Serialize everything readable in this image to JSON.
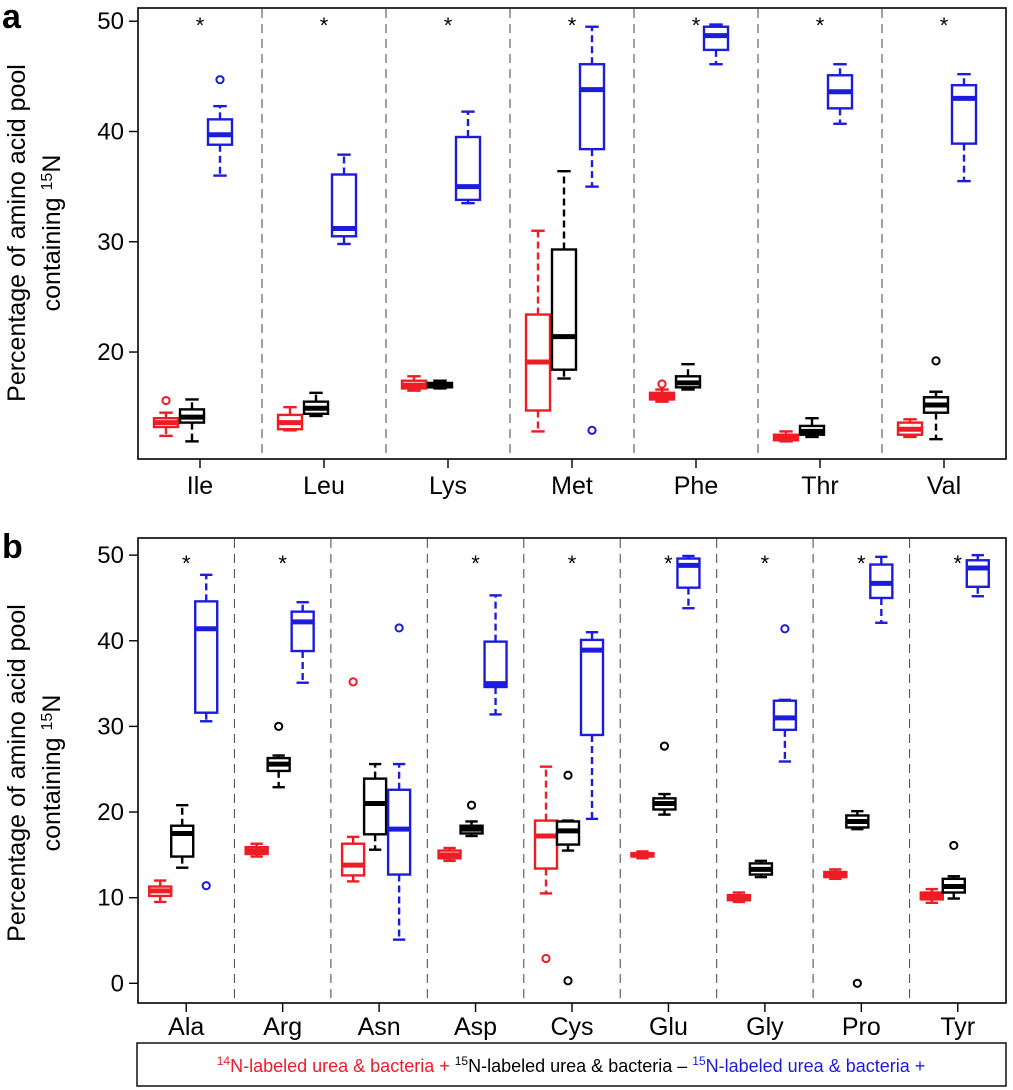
{
  "figure": {
    "colors": {
      "red": "#ee1c24",
      "black": "#000000",
      "blue": "#1c1cdd"
    },
    "legend": {
      "red": {
        "sup": "14",
        "text": "N-labeled urea & bacteria +"
      },
      "black": {
        "sup": "15",
        "text": "N-labeled urea & bacteria –"
      },
      "blue": {
        "sup": "15",
        "text": "N-labeled urea & bacteria +"
      }
    }
  },
  "chart_data": [
    {
      "panel": "a",
      "type": "boxplot",
      "ylabel_line1": "Percentage of amino acid pool",
      "ylabel_line2_prefix": "containing ",
      "ylabel_line2_sup": "15",
      "ylabel_line2_suffix": "N",
      "ylim": [
        10.3,
        51.2
      ],
      "yticks": [
        20,
        30,
        40,
        50
      ],
      "series_names": [
        "14N-labeled urea & bacteria +",
        "15N-labeled urea & bacteria –",
        "15N-labeled urea & bacteria +"
      ],
      "groups": [
        {
          "label": "Ile",
          "star": "*",
          "boxes": [
            {
              "series": "red",
              "min": 12.4,
              "q1": 13.2,
              "median": 13.6,
              "q3": 14.0,
              "max": 14.5,
              "outliers": [
                15.6
              ]
            },
            {
              "series": "black",
              "min": 11.9,
              "q1": 13.6,
              "median": 14.1,
              "q3": 14.8,
              "max": 15.7,
              "outliers": []
            },
            {
              "series": "blue",
              "min": 36.0,
              "q1": 38.8,
              "median": 39.7,
              "q3": 41.1,
              "max": 42.3,
              "outliers": [
                44.7
              ]
            }
          ]
        },
        {
          "label": "Leu",
          "star": "*",
          "boxes": [
            {
              "series": "red",
              "min": 12.9,
              "q1": 13.0,
              "median": 13.6,
              "q3": 14.3,
              "max": 15.0,
              "outliers": []
            },
            {
              "series": "black",
              "min": 14.2,
              "q1": 14.4,
              "median": 14.9,
              "q3": 15.5,
              "max": 16.3,
              "outliers": []
            },
            {
              "series": "blue",
              "min": 29.8,
              "q1": 30.5,
              "median": 31.2,
              "q3": 36.1,
              "max": 37.9,
              "outliers": []
            }
          ]
        },
        {
          "label": "Lys",
          "star": "*",
          "boxes": [
            {
              "series": "red",
              "min": 16.5,
              "q1": 16.7,
              "median": 17.0,
              "q3": 17.4,
              "max": 17.8,
              "outliers": []
            },
            {
              "series": "black",
              "min": 16.7,
              "q1": 16.8,
              "median": 17.0,
              "q3": 17.2,
              "max": 17.4,
              "outliers": []
            },
            {
              "series": "blue",
              "min": 33.5,
              "q1": 33.8,
              "median": 35.0,
              "q3": 39.5,
              "max": 41.8,
              "outliers": []
            }
          ]
        },
        {
          "label": "Met",
          "star": "*",
          "boxes": [
            {
              "series": "red",
              "min": 12.8,
              "q1": 14.7,
              "median": 19.1,
              "q3": 23.4,
              "max": 31.0,
              "outliers": []
            },
            {
              "series": "black",
              "min": 17.6,
              "q1": 18.4,
              "median": 21.4,
              "q3": 29.3,
              "max": 36.4,
              "outliers": []
            },
            {
              "series": "blue",
              "min": 35.0,
              "q1": 38.4,
              "median": 43.8,
              "q3": 46.1,
              "max": 49.5,
              "outliers": [
                12.9
              ]
            }
          ]
        },
        {
          "label": "Phe",
          "star": "*",
          "boxes": [
            {
              "series": "red",
              "min": 15.5,
              "q1": 15.7,
              "median": 16.0,
              "q3": 16.3,
              "max": 16.6,
              "outliers": [
                17.1
              ]
            },
            {
              "series": "black",
              "min": 16.6,
              "q1": 16.8,
              "median": 17.2,
              "q3": 17.8,
              "max": 18.9,
              "outliers": []
            },
            {
              "series": "blue",
              "min": 46.1,
              "q1": 47.4,
              "median": 48.7,
              "q3": 49.5,
              "max": 49.7,
              "outliers": []
            }
          ]
        },
        {
          "label": "Thr",
          "star": "*",
          "boxes": [
            {
              "series": "red",
              "min": 11.9,
              "q1": 12.0,
              "median": 12.3,
              "q3": 12.5,
              "max": 12.8,
              "outliers": []
            },
            {
              "series": "black",
              "min": 12.3,
              "q1": 12.5,
              "median": 12.8,
              "q3": 13.3,
              "max": 14.0,
              "outliers": []
            },
            {
              "series": "blue",
              "min": 40.7,
              "q1": 42.1,
              "median": 43.6,
              "q3": 45.1,
              "max": 46.1,
              "outliers": []
            }
          ]
        },
        {
          "label": "Val",
          "star": "*",
          "boxes": [
            {
              "series": "red",
              "min": 12.3,
              "q1": 12.5,
              "median": 13.0,
              "q3": 13.6,
              "max": 13.9,
              "outliers": []
            },
            {
              "series": "black",
              "min": 12.1,
              "q1": 14.5,
              "median": 15.2,
              "q3": 15.9,
              "max": 16.4,
              "outliers": [
                19.2
              ]
            },
            {
              "series": "blue",
              "min": 35.5,
              "q1": 38.9,
              "median": 43.0,
              "q3": 44.2,
              "max": 45.2,
              "outliers": []
            }
          ]
        }
      ]
    },
    {
      "panel": "b",
      "type": "boxplot",
      "ylabel_line1": "Percentage of amino acid pool",
      "ylabel_line2_prefix": "containing ",
      "ylabel_line2_sup": "15",
      "ylabel_line2_suffix": "N",
      "ylim": [
        -2.3,
        52.0
      ],
      "yticks": [
        0,
        10,
        20,
        30,
        40,
        50
      ],
      "series_names": [
        "14N-labeled urea & bacteria +",
        "15N-labeled urea & bacteria –",
        "15N-labeled urea & bacteria +"
      ],
      "groups": [
        {
          "label": "Ala",
          "star": "*",
          "boxes": [
            {
              "series": "red",
              "min": 9.5,
              "q1": 10.2,
              "median": 10.8,
              "q3": 11.3,
              "max": 12.0,
              "outliers": []
            },
            {
              "series": "black",
              "min": 13.5,
              "q1": 14.8,
              "median": 17.5,
              "q3": 18.4,
              "max": 20.8,
              "outliers": []
            },
            {
              "series": "blue",
              "min": 30.6,
              "q1": 31.6,
              "median": 41.4,
              "q3": 44.6,
              "max": 47.7,
              "outliers": [
                11.4
              ]
            }
          ]
        },
        {
          "label": "Arg",
          "star": "*",
          "boxes": [
            {
              "series": "red",
              "min": 14.8,
              "q1": 15.1,
              "median": 15.5,
              "q3": 15.9,
              "max": 16.3,
              "outliers": []
            },
            {
              "series": "black",
              "min": 22.9,
              "q1": 24.8,
              "median": 25.6,
              "q3": 26.3,
              "max": 26.6,
              "outliers": [
                30.0
              ]
            },
            {
              "series": "blue",
              "min": 35.1,
              "q1": 38.8,
              "median": 42.2,
              "q3": 43.4,
              "max": 44.5,
              "outliers": []
            }
          ]
        },
        {
          "label": "Asn",
          "star": "",
          "boxes": [
            {
              "series": "red",
              "min": 11.9,
              "q1": 12.6,
              "median": 13.8,
              "q3": 16.3,
              "max": 17.1,
              "outliers": [
                35.2
              ]
            },
            {
              "series": "black",
              "min": 15.6,
              "q1": 17.4,
              "median": 21.0,
              "q3": 23.9,
              "max": 25.6,
              "outliers": []
            },
            {
              "series": "blue",
              "min": 5.1,
              "q1": 12.7,
              "median": 18.0,
              "q3": 22.6,
              "max": 25.6,
              "outliers": [
                41.5
              ]
            }
          ]
        },
        {
          "label": "Asp",
          "star": "*",
          "boxes": [
            {
              "series": "red",
              "min": 14.3,
              "q1": 14.6,
              "median": 15.0,
              "q3": 15.5,
              "max": 15.8,
              "outliers": []
            },
            {
              "series": "black",
              "min": 17.2,
              "q1": 17.5,
              "median": 18.0,
              "q3": 18.4,
              "max": 18.9,
              "outliers": [
                20.8
              ]
            },
            {
              "series": "blue",
              "min": 31.4,
              "q1": 34.6,
              "median": 35.0,
              "q3": 39.9,
              "max": 45.3,
              "outliers": []
            }
          ]
        },
        {
          "label": "Cys",
          "star": "*",
          "boxes": [
            {
              "series": "red",
              "min": 10.5,
              "q1": 13.4,
              "median": 17.2,
              "q3": 19.0,
              "max": 25.3,
              "outliers": [
                2.9
              ]
            },
            {
              "series": "black",
              "min": 15.5,
              "q1": 16.2,
              "median": 17.8,
              "q3": 18.9,
              "max": 19.0,
              "outliers": [
                24.3,
                0.3
              ]
            },
            {
              "series": "blue",
              "min": 19.2,
              "q1": 29.0,
              "median": 38.9,
              "q3": 40.1,
              "max": 41.0,
              "outliers": []
            }
          ]
        },
        {
          "label": "Glu",
          "star": "*",
          "boxes": [
            {
              "series": "red",
              "min": 14.6,
              "q1": 14.8,
              "median": 15.0,
              "q3": 15.2,
              "max": 15.4,
              "outliers": []
            },
            {
              "series": "black",
              "min": 19.7,
              "q1": 20.3,
              "median": 21.0,
              "q3": 21.6,
              "max": 22.1,
              "outliers": [
                27.7
              ]
            },
            {
              "series": "blue",
              "min": 43.8,
              "q1": 46.2,
              "median": 48.8,
              "q3": 49.6,
              "max": 49.9,
              "outliers": []
            }
          ]
        },
        {
          "label": "Gly",
          "star": "*",
          "boxes": [
            {
              "series": "red",
              "min": 9.5,
              "q1": 9.7,
              "median": 10.0,
              "q3": 10.3,
              "max": 10.6,
              "outliers": []
            },
            {
              "series": "black",
              "min": 12.4,
              "q1": 12.7,
              "median": 13.3,
              "q3": 14.0,
              "max": 14.3,
              "outliers": []
            },
            {
              "series": "blue",
              "min": 25.9,
              "q1": 29.6,
              "median": 31.0,
              "q3": 33.0,
              "max": 33.1,
              "outliers": [
                41.4
              ]
            }
          ]
        },
        {
          "label": "Pro",
          "star": "*",
          "boxes": [
            {
              "series": "red",
              "min": 12.2,
              "q1": 12.4,
              "median": 12.7,
              "q3": 13.0,
              "max": 13.3,
              "outliers": []
            },
            {
              "series": "black",
              "min": 18.0,
              "q1": 18.2,
              "median": 18.9,
              "q3": 19.6,
              "max": 20.1,
              "outliers": [
                0.0
              ]
            },
            {
              "series": "blue",
              "min": 42.1,
              "q1": 45.0,
              "median": 46.7,
              "q3": 48.9,
              "max": 49.8,
              "outliers": []
            }
          ]
        },
        {
          "label": "Tyr",
          "star": "*",
          "boxes": [
            {
              "series": "red",
              "min": 9.4,
              "q1": 9.8,
              "median": 10.2,
              "q3": 10.6,
              "max": 11.0,
              "outliers": []
            },
            {
              "series": "black",
              "min": 9.9,
              "q1": 10.6,
              "median": 11.3,
              "q3": 12.2,
              "max": 12.5,
              "outliers": [
                16.1
              ]
            },
            {
              "series": "blue",
              "min": 45.2,
              "q1": 46.3,
              "median": 48.5,
              "q3": 49.4,
              "max": 50.0,
              "outliers": []
            }
          ]
        }
      ]
    }
  ]
}
